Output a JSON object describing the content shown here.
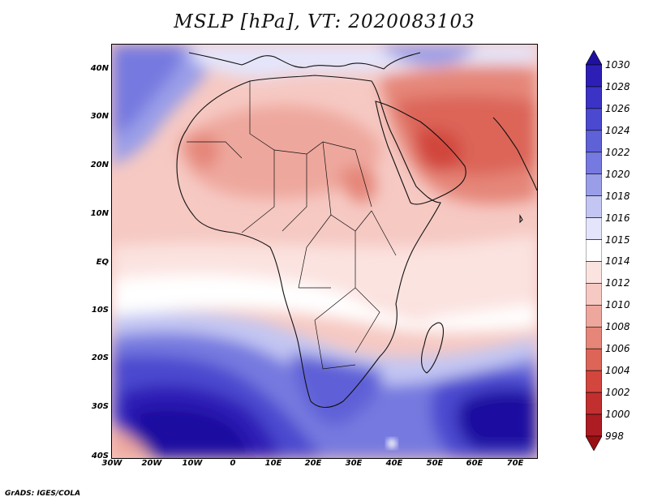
{
  "title": "MSLP [hPa], VT: 2020083103",
  "credit": "GrADS: IGES/COLA",
  "lat_labels": [
    "40N",
    "30N",
    "20N",
    "10N",
    "EQ",
    "10S",
    "20S",
    "30S",
    "40S"
  ],
  "lon_labels": [
    "30W",
    "20W",
    "10W",
    "0",
    "10E",
    "20E",
    "30E",
    "40E",
    "50E",
    "60E",
    "70E"
  ],
  "colorbar": {
    "levels": [
      "1030",
      "1028",
      "1026",
      "1024",
      "1022",
      "1020",
      "1018",
      "1016",
      "1015",
      "1014",
      "1012",
      "1010",
      "1008",
      "1006",
      "1004",
      "1002",
      "1000",
      "998"
    ],
    "colors": [
      "#1f10a0",
      "#2d1fb6",
      "#3b32c6",
      "#4b49cf",
      "#5f61d7",
      "#7679df",
      "#9a9ee8",
      "#c3c6f2",
      "#e4e5fb",
      "#ffffff",
      "#fbe3e0",
      "#f6c9c3",
      "#eea79d",
      "#e58679",
      "#dc6558",
      "#d2463d",
      "#c22f2f",
      "#ad1c22",
      "#981012"
    ]
  }
}
